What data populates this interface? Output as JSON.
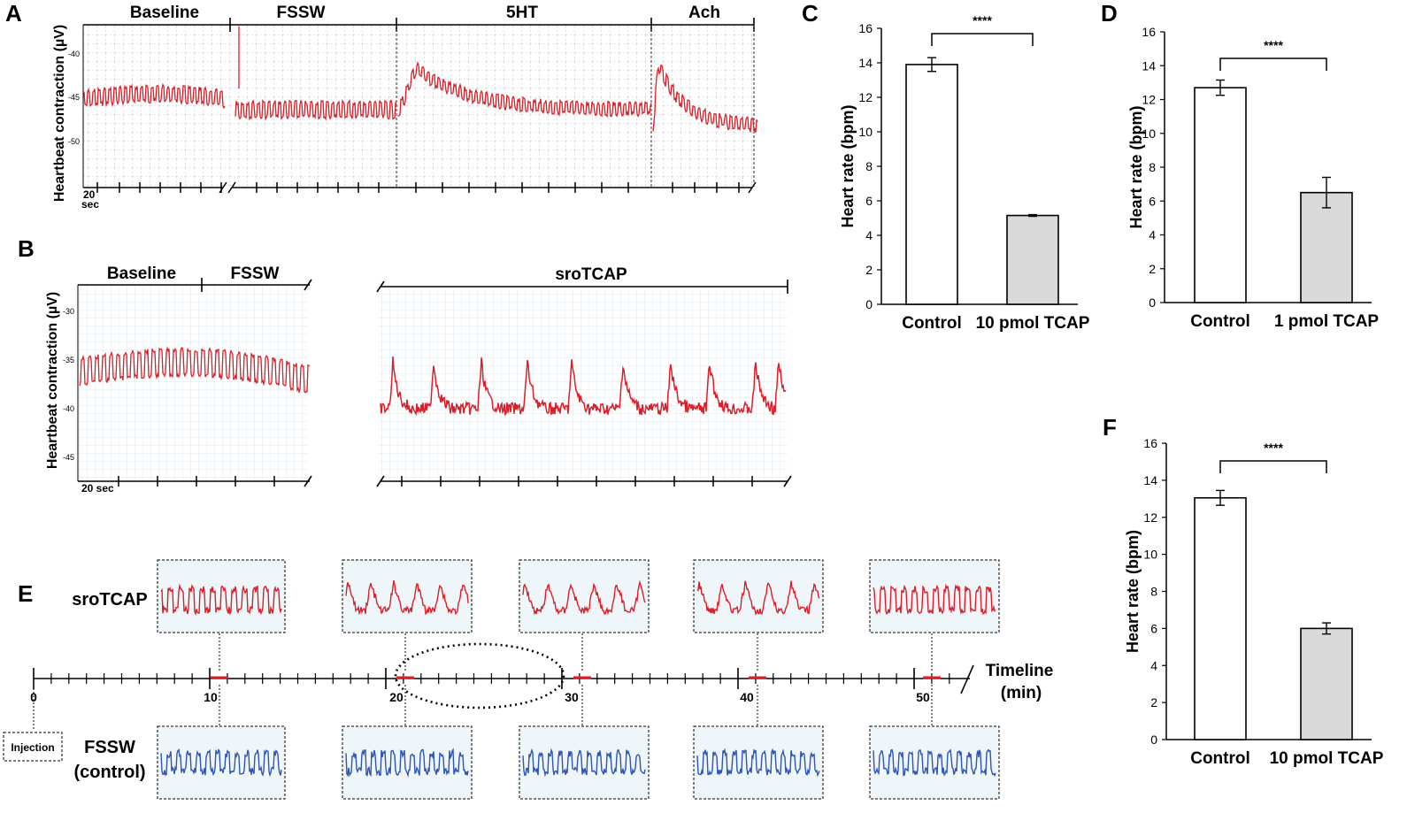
{
  "colors": {
    "trace_red": "#d9202a",
    "trace_blue": "#2f55b5",
    "grid": "#cfe3ef",
    "bar_control": "#ffffff",
    "bar_treat": "#d9d9d9"
  },
  "panelA": {
    "letter": "A",
    "ylabel": "Heartbeat contraction (µV)",
    "yticks": [
      "-40",
      "-45",
      "-50"
    ],
    "segments": [
      "Baseline",
      "FSSW",
      "5HT",
      "Ach"
    ],
    "scale": [
      "20",
      "sec"
    ]
  },
  "panelB": {
    "letter": "B",
    "ylabel": "Heartbeat contraction (µV)",
    "yticks": [
      "-30",
      "-35",
      "-40",
      "-45"
    ],
    "segments": [
      "Baseline",
      "FSSW"
    ],
    "right_label": "sroTCAP",
    "scale": "20 sec"
  },
  "panelE": {
    "letter": "E",
    "top_label": "sroTCAP",
    "bottom_label": [
      "FSSW",
      "(control)"
    ],
    "timeline_label": [
      "Timeline",
      "(min)"
    ],
    "ticks": [
      "0",
      "10",
      "20",
      "30",
      "40",
      "50"
    ],
    "injection": "Injection"
  },
  "chart_data": [
    {
      "panel": "C",
      "type": "bar",
      "categories": [
        "Control",
        "10 pmol TCAP"
      ],
      "values": [
        13.9,
        5.15
      ],
      "errors": [
        0.4,
        0.05
      ],
      "ylabel": "Heart rate (bpm)",
      "ylim": [
        0,
        16
      ],
      "yticks": [
        "0",
        "2",
        "4",
        "6",
        "8",
        "10",
        "12",
        "14",
        "16"
      ],
      "significance": "****"
    },
    {
      "panel": "D",
      "type": "bar",
      "categories": [
        "Control",
        "1 pmol TCAP"
      ],
      "values": [
        12.7,
        6.5
      ],
      "errors": [
        0.45,
        0.9
      ],
      "ylabel": "Heart rate (bpm)",
      "ylim": [
        0,
        16
      ],
      "yticks": [
        "0",
        "2",
        "4",
        "6",
        "8",
        "10",
        "12",
        "14",
        "16"
      ],
      "significance": "****"
    },
    {
      "panel": "F",
      "type": "bar",
      "categories": [
        "Control",
        "10 pmol TCAP"
      ],
      "values": [
        13.05,
        6.0
      ],
      "errors": [
        0.4,
        0.3
      ],
      "ylabel": "Heart rate (bpm)",
      "ylim": [
        0,
        16
      ],
      "yticks": [
        "0",
        "2",
        "4",
        "6",
        "8",
        "10",
        "12",
        "14",
        "16"
      ],
      "significance": "****"
    }
  ]
}
